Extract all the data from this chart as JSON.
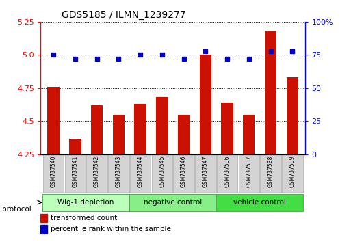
{
  "title": "GDS5185 / ILMN_1239277",
  "samples": [
    "GSM737540",
    "GSM737541",
    "GSM737542",
    "GSM737543",
    "GSM737544",
    "GSM737545",
    "GSM737546",
    "GSM737547",
    "GSM737536",
    "GSM737537",
    "GSM737538",
    "GSM737539"
  ],
  "transformed_count": [
    4.76,
    4.37,
    4.62,
    4.55,
    4.63,
    4.68,
    4.55,
    5.0,
    4.64,
    4.55,
    5.18,
    4.83
  ],
  "percentile_rank": [
    75,
    72,
    72,
    72,
    75,
    75,
    72,
    78,
    72,
    72,
    78,
    78
  ],
  "ylim_left": [
    4.25,
    5.25
  ],
  "ylim_right": [
    0,
    100
  ],
  "yticks_left": [
    4.25,
    4.5,
    4.75,
    5.0,
    5.25
  ],
  "yticks_right": [
    0,
    25,
    50,
    75,
    100
  ],
  "groups": [
    {
      "label": "Wig-1 depletion",
      "start": 0,
      "end": 3,
      "color": "#bbffbb"
    },
    {
      "label": "negative control",
      "start": 4,
      "end": 7,
      "color": "#88ee88"
    },
    {
      "label": "vehicle control",
      "start": 8,
      "end": 11,
      "color": "#44dd44"
    }
  ],
  "bar_color": "#cc1100",
  "dot_color": "#0000cc",
  "plot_bg": "#ffffff",
  "sample_box_color": "#d4d4d4",
  "sample_box_edge": "#aaaaaa",
  "legend_items": [
    {
      "color": "#cc1100",
      "label": "transformed count"
    },
    {
      "color": "#0000cc",
      "label": "percentile rank within the sample"
    }
  ]
}
